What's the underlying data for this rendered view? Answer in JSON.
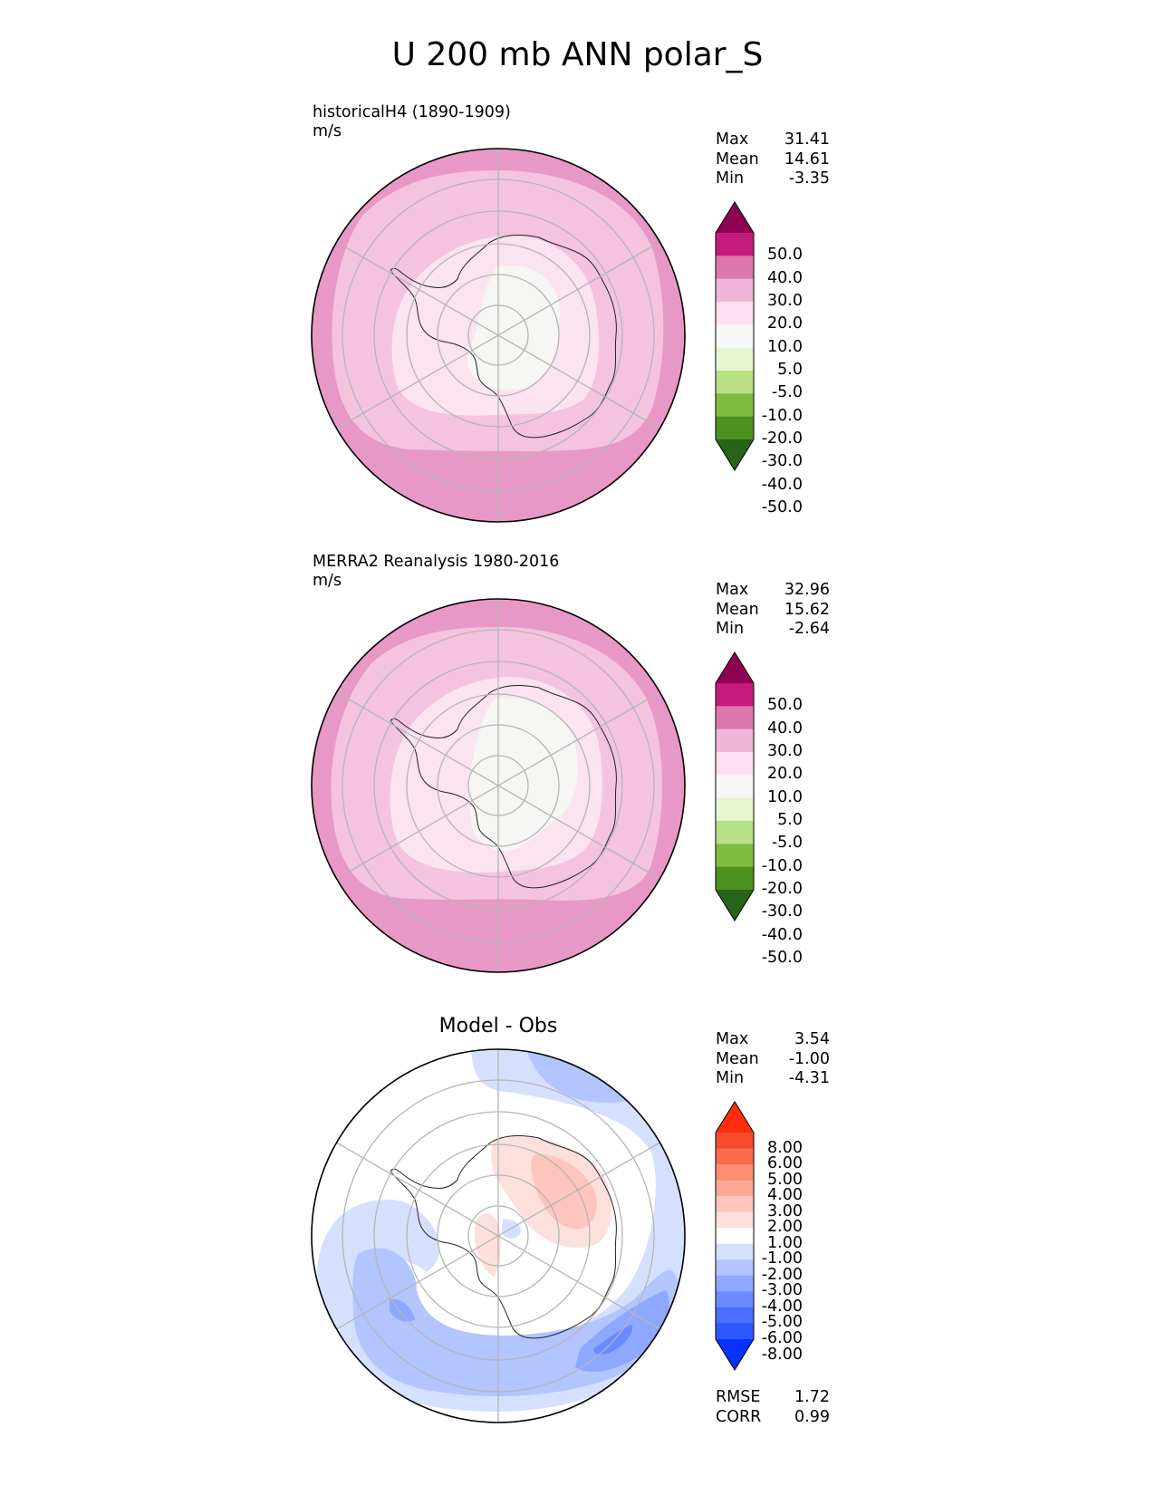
{
  "page_title": "U 200 mb ANN polar_S",
  "colors": {
    "test_ref": [
      "#276419",
      "#4d9221",
      "#7fbc41",
      "#b8e186",
      "#e6f5d0",
      "#f7f7f7",
      "#fde0ef",
      "#f1b6da",
      "#de77ae",
      "#c51b7d",
      "#8e0152"
    ],
    "diff": [
      "#0532ff",
      "#2d57ff",
      "#4a6fff",
      "#6a8bff",
      "#8ea8ff",
      "#b3c5ff",
      "#d5e0ff",
      "#ffffff",
      "#fde0dc",
      "#fdc5bd",
      "#fca896",
      "#fc8c73",
      "#fb6a4a",
      "#f54a2b",
      "#ff2d0d"
    ]
  },
  "panels": [
    {
      "title": "historicalH4 (1890-1909)",
      "units": "m/s",
      "stats": {
        "max_label": "Max",
        "max": "31.41",
        "mean_label": "Mean",
        "mean": "14.61",
        "min_label": "Min",
        "min": "-3.35"
      },
      "colorbar_ticks": [
        "50.0",
        "40.0",
        "30.0",
        "20.0",
        "10.0",
        "5.0",
        "-5.0",
        "-10.0",
        "-20.0",
        "-30.0",
        "-40.0",
        "-50.0"
      ]
    },
    {
      "title": "MERRA2 Reanalysis 1980-2016",
      "units": "m/s",
      "stats": {
        "max_label": "Max",
        "max": "32.96",
        "mean_label": "Mean",
        "mean": "15.62",
        "min_label": "Min",
        "min": "-2.64"
      },
      "colorbar_ticks": [
        "50.0",
        "40.0",
        "30.0",
        "20.0",
        "10.0",
        "5.0",
        "-5.0",
        "-10.0",
        "-20.0",
        "-30.0",
        "-40.0",
        "-50.0"
      ]
    },
    {
      "title": "Model - Obs",
      "units": "",
      "stats": {
        "max_label": "Max",
        "max": "3.54",
        "mean_label": "Mean",
        "mean": "-1.00",
        "min_label": "Min",
        "min": "-4.31"
      },
      "colorbar_ticks": [
        "8.00",
        "6.00",
        "5.00",
        "4.00",
        "3.00",
        "2.00",
        "1.00",
        "-1.00",
        "-2.00",
        "-3.00",
        "-4.00",
        "-5.00",
        "-6.00",
        "-8.00"
      ],
      "rmse_label": "RMSE",
      "rmse": "1.72",
      "corr_label": "CORR",
      "corr": "0.99"
    }
  ],
  "chart_data": [
    {
      "type": "heatmap",
      "title": "historicalH4 (1890-1909)",
      "units": "m/s",
      "projection": "south polar stereographic",
      "contour_levels": [
        -50,
        -40,
        -30,
        -20,
        -10,
        -5,
        5,
        10,
        20,
        30,
        40,
        50
      ],
      "max": 31.41,
      "mean": 14.61,
      "min": -3.35
    },
    {
      "type": "heatmap",
      "title": "MERRA2 Reanalysis 1980-2016",
      "units": "m/s",
      "projection": "south polar stereographic",
      "contour_levels": [
        -50,
        -40,
        -30,
        -20,
        -10,
        -5,
        5,
        10,
        20,
        30,
        40,
        50
      ],
      "max": 32.96,
      "mean": 15.62,
      "min": -2.64
    },
    {
      "type": "heatmap",
      "title": "Model - Obs",
      "projection": "south polar stereographic",
      "contour_levels": [
        -8,
        -6,
        -5,
        -4,
        -3,
        -2,
        -1,
        1,
        2,
        3,
        4,
        5,
        6,
        8
      ],
      "max": 3.54,
      "mean": -1.0,
      "min": -4.31,
      "rmse": 1.72,
      "corr": 0.99
    }
  ]
}
